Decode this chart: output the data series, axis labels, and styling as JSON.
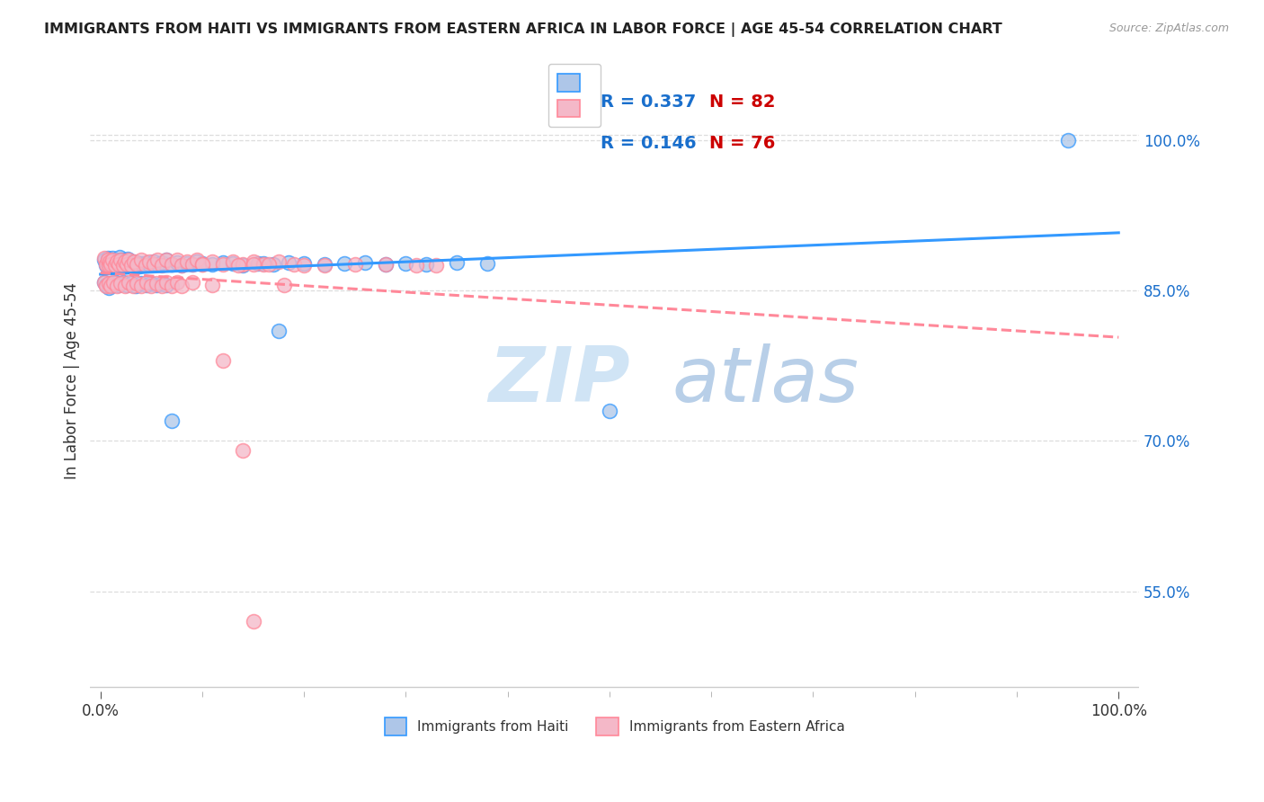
{
  "title": "IMMIGRANTS FROM HAITI VS IMMIGRANTS FROM EASTERN AFRICA IN LABOR FORCE | AGE 45-54 CORRELATION CHART",
  "source": "Source: ZipAtlas.com",
  "ylabel": "In Labor Force | Age 45-54",
  "ytick_values": [
    0.55,
    0.7,
    0.85,
    1.0
  ],
  "grid_color": "#dddddd",
  "background_color": "#ffffff",
  "series1_color": "#aec6e8",
  "series2_color": "#f4b8c8",
  "series1_label": "Immigrants from Haiti",
  "series2_label": "Immigrants from Eastern Africa",
  "R1": 0.337,
  "N1": 82,
  "R2": 0.146,
  "N2": 76,
  "legend_R_color": "#1a6fcc",
  "legend_N_color": "#cc0000",
  "trendline1_color": "#3399ff",
  "trendline2_color": "#ff8899",
  "watermark_zip": "ZIP",
  "watermark_atlas": "atlas",
  "watermark_color_zip": "#cde0f5",
  "watermark_color_atlas": "#b8cfe8",
  "series1_x": [
    0.004,
    0.006,
    0.007,
    0.008,
    0.009,
    0.01,
    0.011,
    0.012,
    0.013,
    0.014,
    0.015,
    0.016,
    0.017,
    0.018,
    0.019,
    0.02,
    0.021,
    0.022,
    0.023,
    0.024,
    0.025,
    0.026,
    0.027,
    0.028,
    0.03,
    0.032,
    0.034,
    0.036,
    0.038,
    0.04,
    0.042,
    0.045,
    0.048,
    0.052,
    0.056,
    0.06,
    0.065,
    0.07,
    0.075,
    0.08,
    0.085,
    0.09,
    0.095,
    0.1,
    0.11,
    0.12,
    0.13,
    0.14,
    0.155,
    0.17,
    0.185,
    0.2,
    0.22,
    0.24,
    0.26,
    0.28,
    0.3,
    0.32,
    0.35,
    0.38,
    0.004,
    0.006,
    0.008,
    0.01,
    0.012,
    0.015,
    0.018,
    0.022,
    0.026,
    0.03,
    0.035,
    0.04,
    0.045,
    0.05,
    0.055,
    0.06,
    0.065,
    0.07,
    0.5,
    0.95,
    0.16,
    0.175
  ],
  "series1_y": [
    0.88,
    0.875,
    0.882,
    0.878,
    0.876,
    0.879,
    0.877,
    0.882,
    0.874,
    0.88,
    0.876,
    0.879,
    0.874,
    0.878,
    0.883,
    0.876,
    0.88,
    0.875,
    0.879,
    0.874,
    0.878,
    0.876,
    0.881,
    0.877,
    0.875,
    0.879,
    0.876,
    0.878,
    0.874,
    0.877,
    0.875,
    0.878,
    0.876,
    0.879,
    0.876,
    0.878,
    0.88,
    0.876,
    0.878,
    0.875,
    0.877,
    0.876,
    0.879,
    0.877,
    0.876,
    0.878,
    0.877,
    0.875,
    0.877,
    0.876,
    0.878,
    0.877,
    0.876,
    0.877,
    0.878,
    0.876,
    0.877,
    0.876,
    0.878,
    0.877,
    0.858,
    0.855,
    0.853,
    0.857,
    0.855,
    0.858,
    0.855,
    0.858,
    0.855,
    0.857,
    0.854,
    0.857,
    0.855,
    0.857,
    0.855,
    0.857,
    0.855,
    0.72,
    0.73,
    1.0,
    0.877,
    0.81
  ],
  "series2_x": [
    0.004,
    0.006,
    0.007,
    0.008,
    0.009,
    0.01,
    0.012,
    0.014,
    0.016,
    0.018,
    0.02,
    0.022,
    0.024,
    0.026,
    0.028,
    0.03,
    0.033,
    0.036,
    0.04,
    0.044,
    0.048,
    0.052,
    0.056,
    0.06,
    0.065,
    0.07,
    0.075,
    0.08,
    0.085,
    0.09,
    0.095,
    0.1,
    0.11,
    0.12,
    0.13,
    0.14,
    0.15,
    0.16,
    0.175,
    0.19,
    0.004,
    0.006,
    0.008,
    0.01,
    0.013,
    0.016,
    0.02,
    0.024,
    0.028,
    0.032,
    0.036,
    0.04,
    0.045,
    0.05,
    0.055,
    0.06,
    0.065,
    0.07,
    0.075,
    0.08,
    0.09,
    0.1,
    0.11,
    0.12,
    0.135,
    0.15,
    0.165,
    0.18,
    0.2,
    0.22,
    0.25,
    0.28,
    0.31,
    0.33,
    0.14,
    0.15
  ],
  "series2_y": [
    0.882,
    0.876,
    0.88,
    0.875,
    0.879,
    0.876,
    0.88,
    0.875,
    0.879,
    0.876,
    0.88,
    0.875,
    0.879,
    0.876,
    0.88,
    0.875,
    0.879,
    0.876,
    0.88,
    0.875,
    0.879,
    0.876,
    0.88,
    0.875,
    0.88,
    0.876,
    0.88,
    0.875,
    0.879,
    0.876,
    0.88,
    0.876,
    0.879,
    0.876,
    0.879,
    0.876,
    0.879,
    0.876,
    0.879,
    0.876,
    0.858,
    0.854,
    0.857,
    0.854,
    0.858,
    0.854,
    0.857,
    0.854,
    0.858,
    0.854,
    0.857,
    0.854,
    0.858,
    0.854,
    0.857,
    0.854,
    0.858,
    0.854,
    0.858,
    0.854,
    0.858,
    0.876,
    0.855,
    0.78,
    0.875,
    0.876,
    0.876,
    0.855,
    0.875,
    0.875,
    0.876,
    0.876,
    0.875,
    0.875,
    0.69,
    0.52
  ]
}
